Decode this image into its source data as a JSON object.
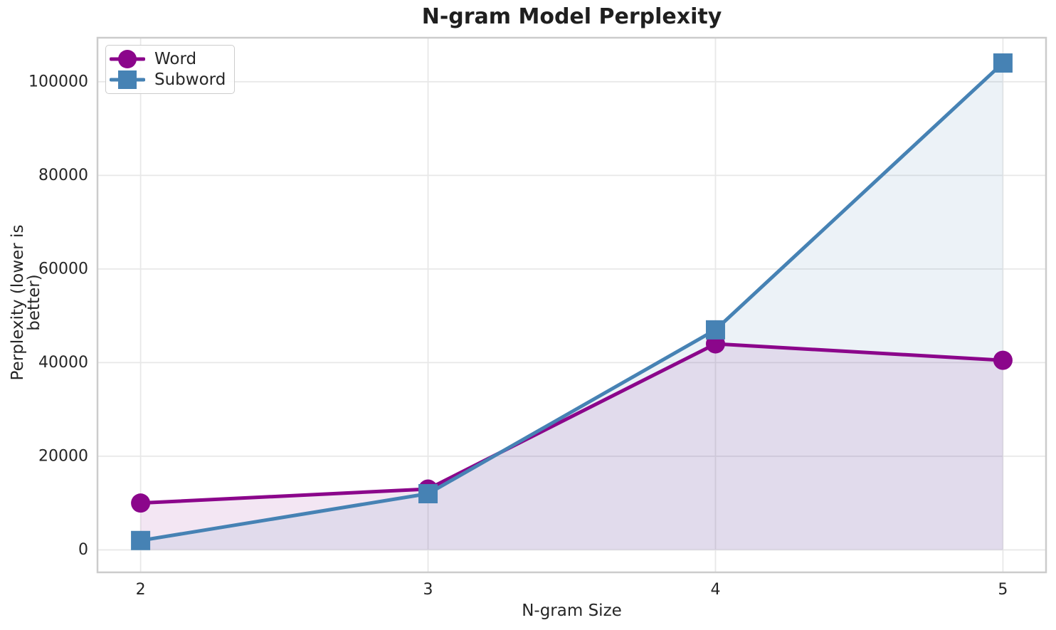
{
  "chart_data": {
    "type": "line",
    "title": "N-gram Model Perplexity",
    "xlabel": "N-gram Size",
    "ylabel": "Perplexity (lower is better)",
    "x": [
      2,
      3,
      4,
      5
    ],
    "series": [
      {
        "name": "Word",
        "color": "#8B068B",
        "marker": "circle",
        "values": [
          10000,
          13000,
          44000,
          40500
        ],
        "fill_opacity": 0.1
      },
      {
        "name": "Subword",
        "color": "#4682B4",
        "marker": "square",
        "values": [
          2000,
          12000,
          47000,
          104000
        ],
        "fill_opacity": 0.1
      }
    ],
    "xticks": [
      2,
      3,
      4,
      5
    ],
    "yticks": [
      0,
      20000,
      40000,
      60000,
      80000,
      100000
    ],
    "xlim": [
      1.85,
      5.15
    ],
    "ylim": [
      -4800,
      109400
    ],
    "fill_baseline": 0,
    "grid": true,
    "legend_position": "upper left",
    "colors": {
      "grid": "#e8e8e8",
      "spine": "#cccccc",
      "text": "#262626",
      "title": "#1f1f1f",
      "background": "#ffffff"
    }
  }
}
